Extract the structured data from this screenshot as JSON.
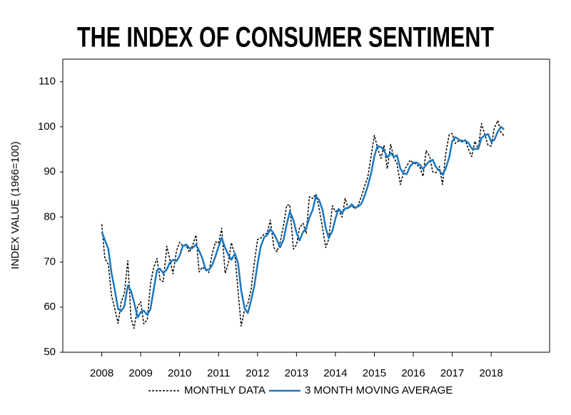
{
  "chart_data": {
    "type": "line",
    "title": "THE INDEX OF CONSUMER SENTIMENT",
    "y_label": "INDEX VALUE (1966=100)",
    "x": [
      2008,
      2008.08,
      2008.17,
      2008.25,
      2008.33,
      2008.42,
      2008.5,
      2008.58,
      2008.67,
      2008.75,
      2008.83,
      2008.92,
      2009,
      2009.08,
      2009.17,
      2009.25,
      2009.33,
      2009.42,
      2009.5,
      2009.58,
      2009.67,
      2009.75,
      2009.83,
      2009.92,
      2010,
      2010.08,
      2010.17,
      2010.25,
      2010.33,
      2010.42,
      2010.5,
      2010.58,
      2010.67,
      2010.75,
      2010.83,
      2010.92,
      2011,
      2011.08,
      2011.17,
      2011.25,
      2011.33,
      2011.42,
      2011.5,
      2011.58,
      2011.67,
      2011.75,
      2011.83,
      2011.92,
      2012,
      2012.08,
      2012.17,
      2012.25,
      2012.33,
      2012.42,
      2012.5,
      2012.58,
      2012.67,
      2012.75,
      2012.83,
      2012.92,
      2013,
      2013.08,
      2013.17,
      2013.25,
      2013.33,
      2013.42,
      2013.5,
      2013.58,
      2013.67,
      2013.75,
      2013.83,
      2013.92,
      2014,
      2014.08,
      2014.17,
      2014.25,
      2014.33,
      2014.42,
      2014.5,
      2014.58,
      2014.67,
      2014.75,
      2014.83,
      2014.92,
      2015,
      2015.08,
      2015.17,
      2015.25,
      2015.33,
      2015.42,
      2015.5,
      2015.58,
      2015.67,
      2015.75,
      2015.83,
      2015.92,
      2016,
      2016.08,
      2016.17,
      2016.25,
      2016.33,
      2016.42,
      2016.5,
      2016.58,
      2016.67,
      2016.75,
      2016.83,
      2016.92,
      2017,
      2017.08,
      2017.17,
      2017.25,
      2017.33,
      2017.42,
      2017.5,
      2017.58,
      2017.67,
      2017.75,
      2017.83,
      2017.92,
      2018,
      2018.08,
      2018.17,
      2018.25,
      2018.33
    ],
    "series": [
      {
        "name": "MONTHLY DATA",
        "color": "#000000",
        "dashed": true,
        "values": [
          78.4,
          70.8,
          69.5,
          62.6,
          59.8,
          56.4,
          61.2,
          63.0,
          70.3,
          57.6,
          55.3,
          60.1,
          61.2,
          56.3,
          57.3,
          65.1,
          68.7,
          70.8,
          66.0,
          65.7,
          73.5,
          70.6,
          67.4,
          72.5,
          74.4,
          73.6,
          73.6,
          72.2,
          73.6,
          76.0,
          67.8,
          68.9,
          68.2,
          67.7,
          71.6,
          74.5,
          74.2,
          77.5,
          67.5,
          69.8,
          74.3,
          71.5,
          63.7,
          55.8,
          59.5,
          60.8,
          63.7,
          69.9,
          75.0,
          75.3,
          76.2,
          76.4,
          79.3,
          73.2,
          72.3,
          74.3,
          78.3,
          82.6,
          82.7,
          72.9,
          73.8,
          77.6,
          78.6,
          76.4,
          84.5,
          84.1,
          85.1,
          82.1,
          77.5,
          73.2,
          75.1,
          82.5,
          81.2,
          81.6,
          80.0,
          84.1,
          81.9,
          82.5,
          81.8,
          82.5,
          84.6,
          86.9,
          88.8,
          93.6,
          98.1,
          95.4,
          93.0,
          95.9,
          90.7,
          96.1,
          93.1,
          91.9,
          87.2,
          90.0,
          91.3,
          92.6,
          92.0,
          91.7,
          91.0,
          89.0,
          94.7,
          93.5,
          90.0,
          89.8,
          91.2,
          87.2,
          93.8,
          98.2,
          98.5,
          96.3,
          96.9,
          97.0,
          97.1,
          95.0,
          93.4,
          96.8,
          95.1,
          100.7,
          98.5,
          95.9,
          95.7,
          99.7,
          101.4,
          98.8,
          98.0
        ]
      },
      {
        "name": "3 MONTH MOVING AVERAGE",
        "color": "#1a78c2",
        "dashed": false,
        "values": [
          76.7,
          74.9,
          72.9,
          67.6,
          64.0,
          59.6,
          59.1,
          60.2,
          64.8,
          63.6,
          61.1,
          57.7,
          58.9,
          59.2,
          58.3,
          59.6,
          63.7,
          68.2,
          68.5,
          67.5,
          68.4,
          69.9,
          70.5,
          70.2,
          71.4,
          73.5,
          73.9,
          73.1,
          73.1,
          73.9,
          72.5,
          70.9,
          68.3,
          68.3,
          69.2,
          71.3,
          73.4,
          75.4,
          73.1,
          71.6,
          70.5,
          71.9,
          69.8,
          63.7,
          59.7,
          58.7,
          61.3,
          64.8,
          69.5,
          73.4,
          75.5,
          76.0,
          77.3,
          76.3,
          74.9,
          73.3,
          75.0,
          78.4,
          81.2,
          79.4,
          76.5,
          74.8,
          76.7,
          77.5,
          79.8,
          81.7,
          84.6,
          83.8,
          81.6,
          77.6,
          75.3,
          76.9,
          79.6,
          81.8,
          80.9,
          81.9,
          82.0,
          82.8,
          82.1,
          82.3,
          83.0,
          84.7,
          86.8,
          89.8,
          93.5,
          95.7,
          95.5,
          94.8,
          93.2,
          94.2,
          93.3,
          93.7,
          90.7,
          89.7,
          89.5,
          91.3,
          92.0,
          92.1,
          91.6,
          90.6,
          91.6,
          92.4,
          92.7,
          91.1,
          90.3,
          89.4,
          90.7,
          93.1,
          96.8,
          97.7,
          97.2,
          96.7,
          97.0,
          96.4,
          95.2,
          95.1,
          95.1,
          97.5,
          98.1,
          98.4,
          96.7,
          97.1,
          98.9,
          100.0,
          99.4
        ]
      }
    ],
    "xlim": [
      2007,
      2019.5
    ],
    "xticks": [
      2008,
      2009,
      2010,
      2011,
      2012,
      2013,
      2014,
      2015,
      2016,
      2017,
      2018
    ],
    "ylim": [
      50,
      115
    ],
    "yticks": [
      50,
      60,
      70,
      80,
      90,
      100,
      110
    ],
    "legend": "bottom"
  }
}
